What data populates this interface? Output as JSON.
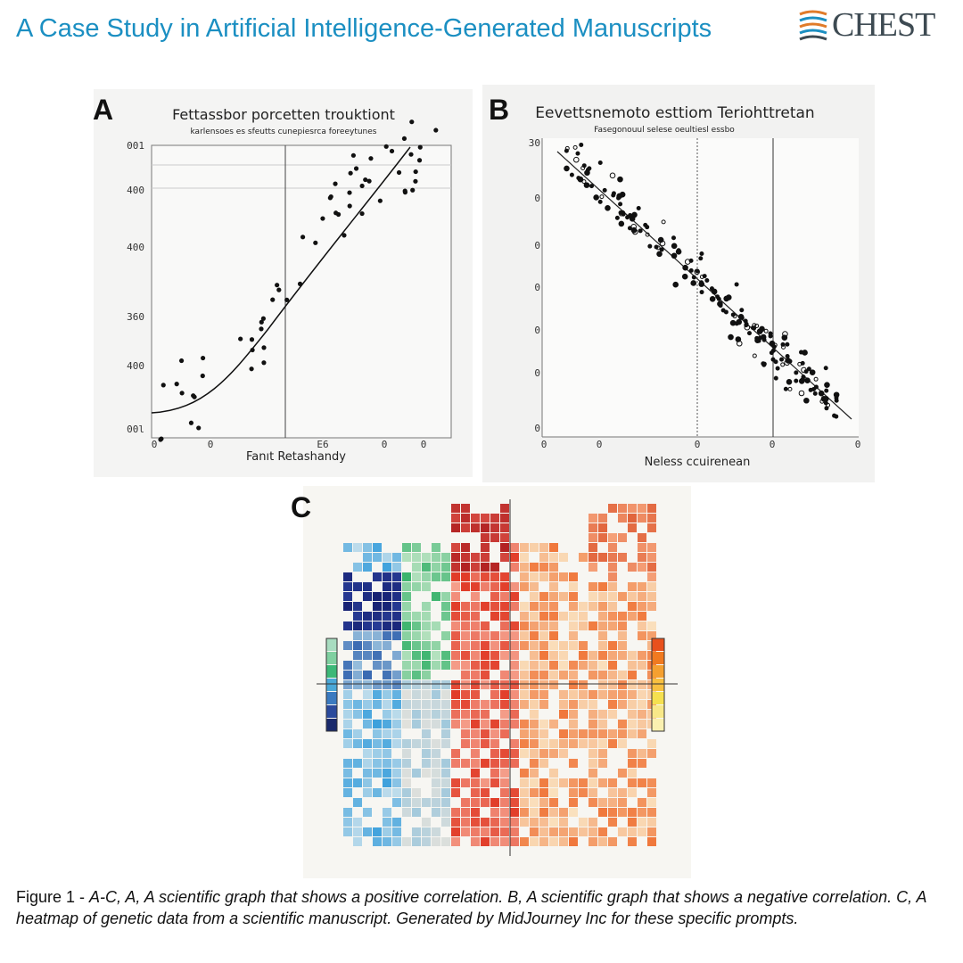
{
  "header": {
    "title": "A Case Study in Artificial Intelligence-Generated Manuscripts",
    "logo": "CHEST"
  },
  "panels": [
    {
      "label": "A",
      "title": "Fettassbor porcetten trouktiont",
      "subtitle": "karlensoes es sfeutts cunepiesrca foreeytunes",
      "x_label": "Fanıt Retashandy",
      "y_tick_labels": [
        "001",
        "400",
        "400",
        "360",
        "400",
        "00l"
      ],
      "x_tick_labels": [
        "0",
        "0",
        "E6",
        "0",
        "0"
      ]
    },
    {
      "label": "B",
      "title": "Eevettsnemoto esttiom Teriohttretan",
      "subtitle": "Fasegonouul selese oeultiesl essbo",
      "x_label": "Neless ccuirenean",
      "y_tick_labels": [
        "30",
        "0",
        "0",
        "0",
        "0",
        "0",
        "0"
      ],
      "x_tick_labels": [
        "0",
        "0",
        "0",
        "0",
        "0"
      ]
    },
    {
      "label": "C"
    }
  ],
  "caption": {
    "prefix": "Figure 1 - ",
    "text": "A-C, A, A scientific graph that shows a positive correlation. B, A scientific graph that shows a negative correlation. C, A heatmap of genetic data from a scientific manuscript. Generated by MidJourney Inc for these specific prompts."
  }
}
